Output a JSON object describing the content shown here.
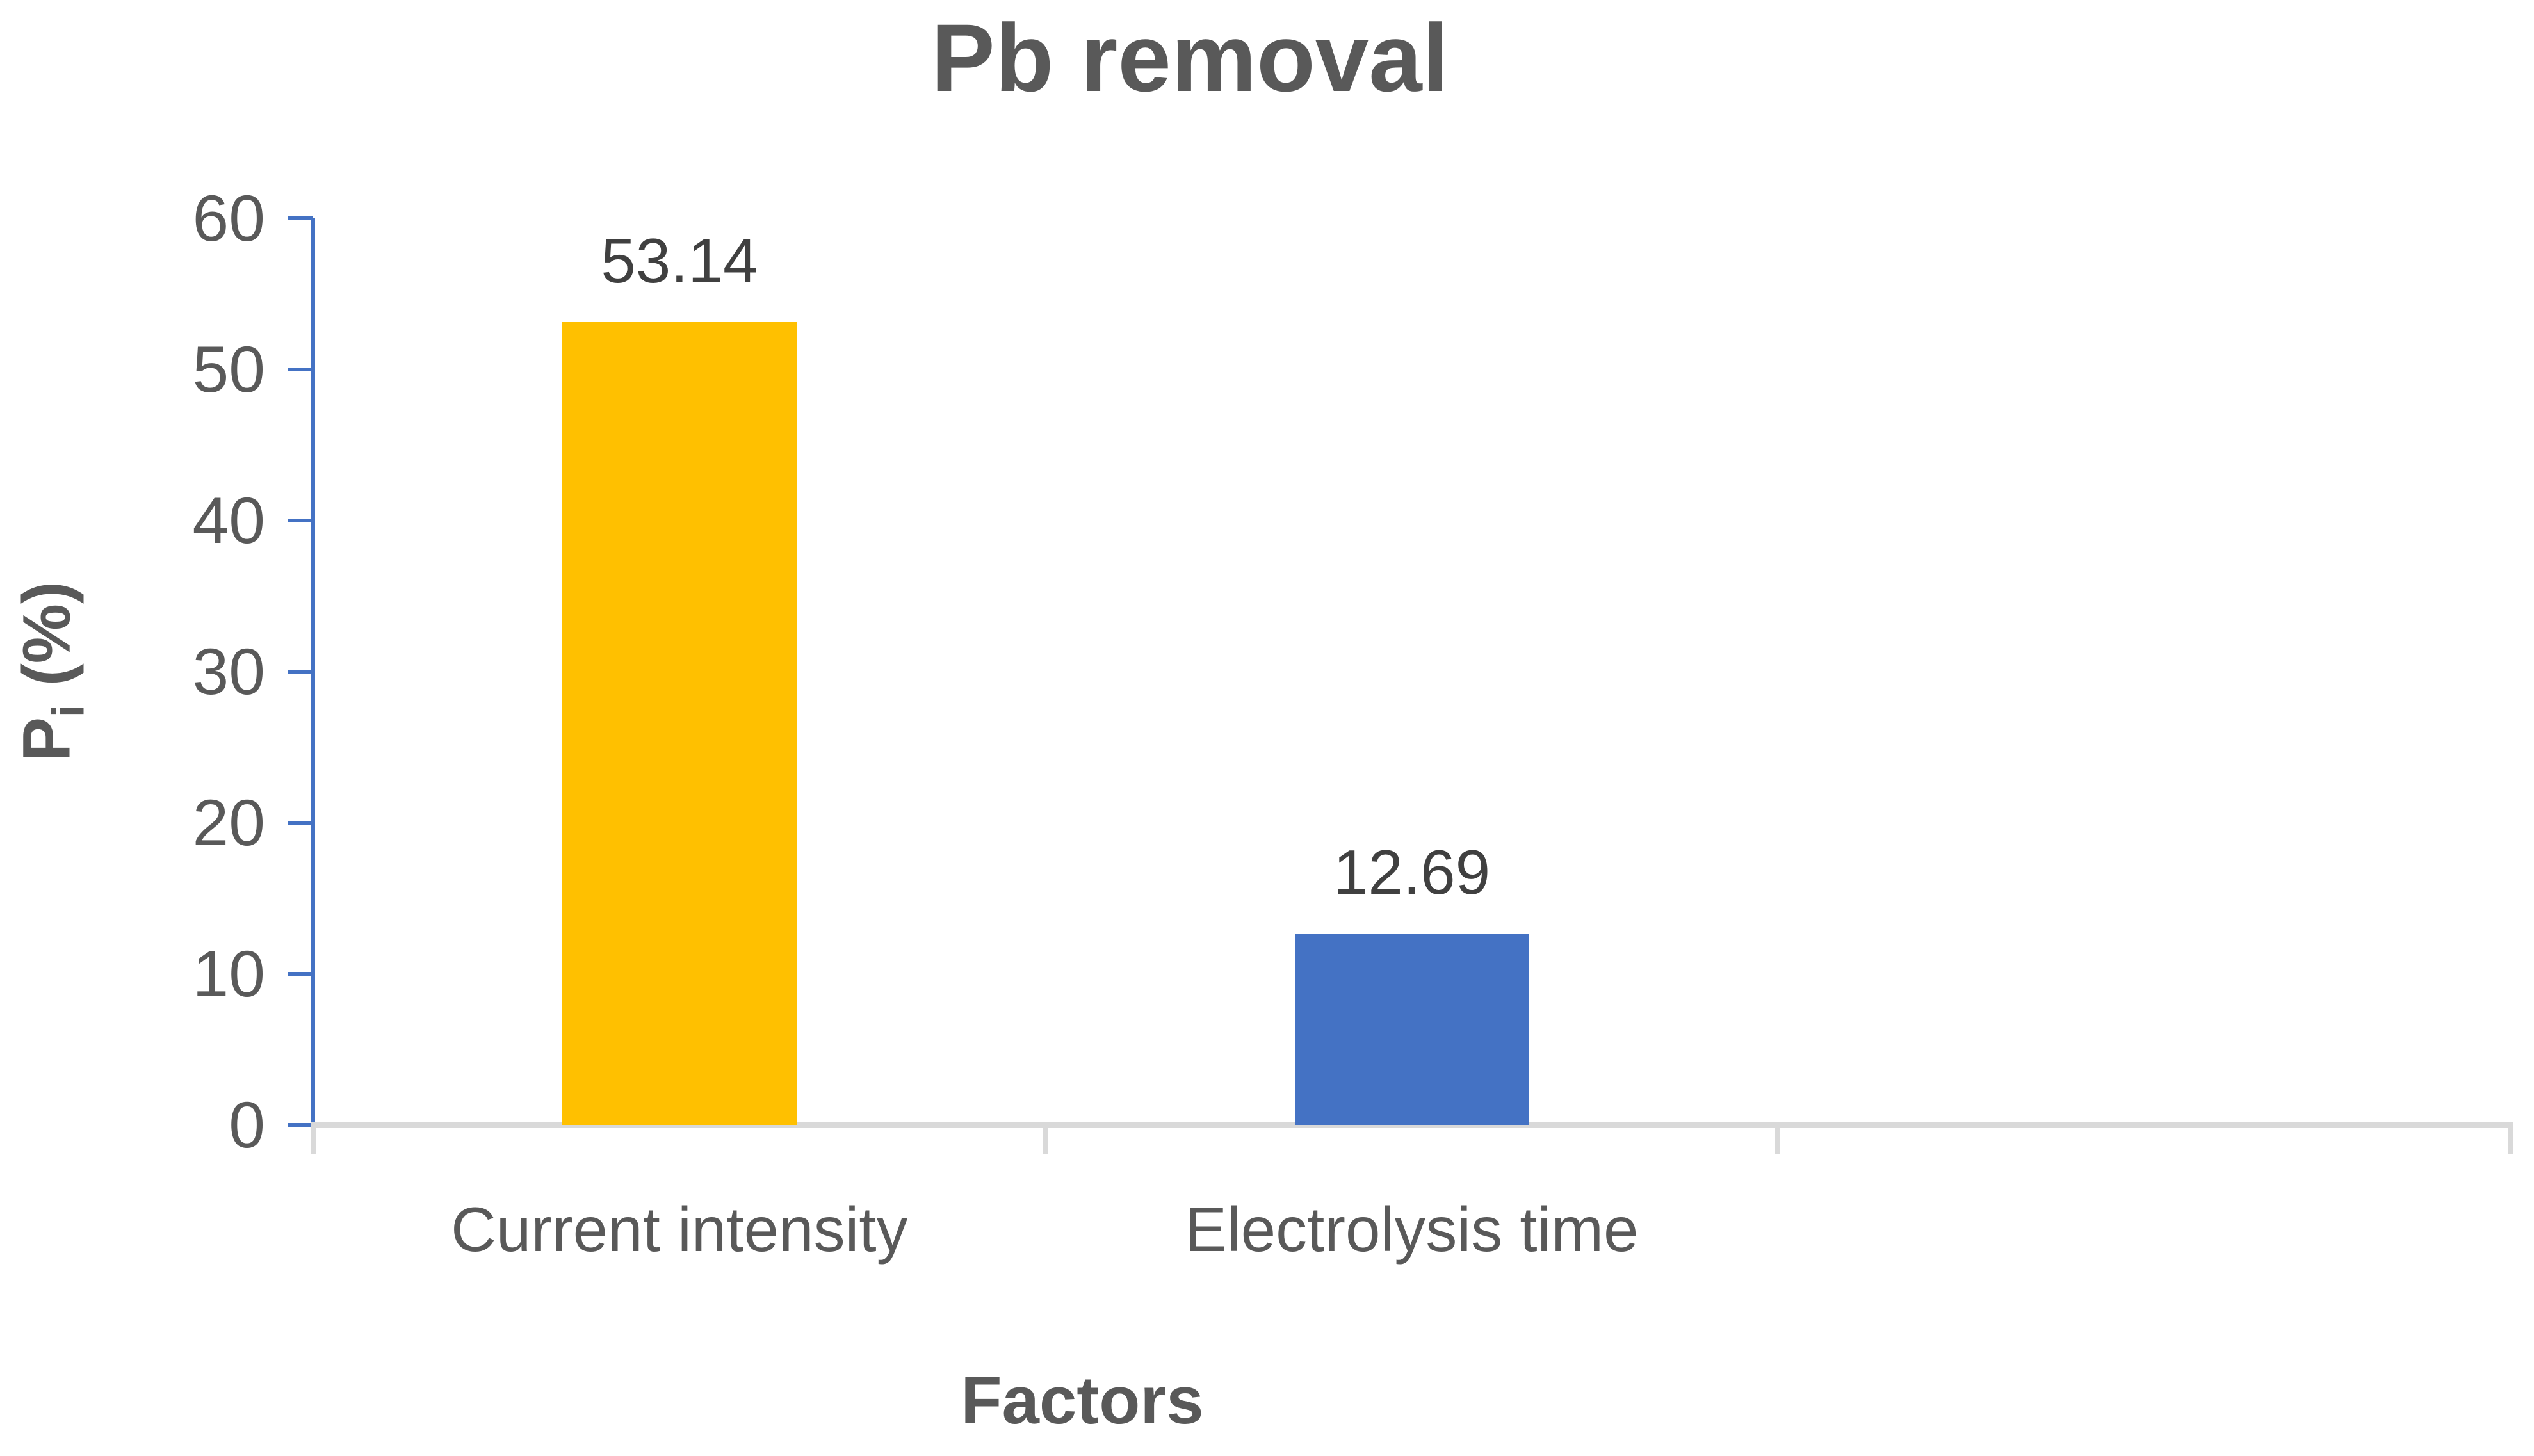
{
  "chart_data": {
    "type": "bar",
    "title": "Pb removal",
    "xlabel": "Factors",
    "ylabel": "Pi (%)",
    "ylabel_parts": {
      "base": "P",
      "subscript": "i",
      "suffix": " (%)"
    },
    "categories": [
      "Current intensity",
      "Electrolysis time"
    ],
    "values": [
      53.14,
      12.69
    ],
    "value_labels": [
      "53.14",
      "12.69"
    ],
    "bar_colors": [
      "#FFC000",
      "#4472C4"
    ],
    "ylim": [
      0,
      60
    ],
    "ytick_step": 10,
    "yticks": [
      60,
      50,
      40,
      30,
      20,
      10,
      0
    ],
    "category_slots": 3,
    "legend": "none",
    "grid": "baseline-only",
    "colors": {
      "y_axis_line": "#4472C4",
      "y_tick": "#4472C4",
      "baseline_gridline": "#D9D9D9",
      "category_boundary_tick": "#D9D9D9",
      "axis_text": "#595959",
      "data_label_text": "#404040",
      "title_text": "#595959",
      "background": "#FFFFFF"
    }
  }
}
